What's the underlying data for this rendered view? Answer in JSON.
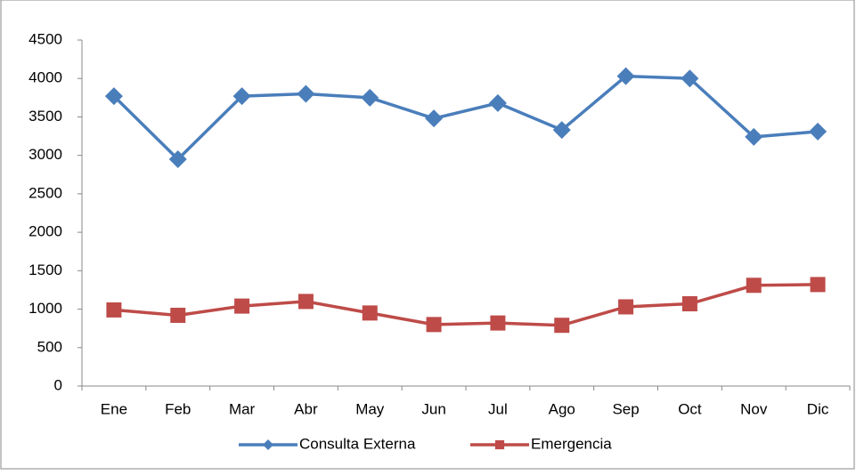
{
  "chart_data": {
    "type": "line",
    "categories": [
      "Ene",
      "Feb",
      "Mar",
      "Abr",
      "May",
      "Jun",
      "Jul",
      "Ago",
      "Sep",
      "Oct",
      "Nov",
      "Dic"
    ],
    "series": [
      {
        "name": "Consulta Externa",
        "color": "#4a7ebb",
        "marker": "diamond",
        "values": [
          3770,
          2950,
          3770,
          3800,
          3750,
          3480,
          3680,
          3330,
          4030,
          4000,
          3240,
          3310
        ]
      },
      {
        "name": "Emergencia",
        "color": "#be4b48",
        "marker": "square",
        "values": [
          990,
          920,
          1040,
          1100,
          950,
          800,
          820,
          790,
          1030,
          1070,
          1310,
          1320
        ]
      }
    ],
    "ylim": [
      0,
      4500
    ],
    "yticks": [
      0,
      500,
      1000,
      1500,
      2000,
      2500,
      3000,
      3500,
      4000,
      4500
    ],
    "grid": false,
    "legend": "bottom"
  }
}
